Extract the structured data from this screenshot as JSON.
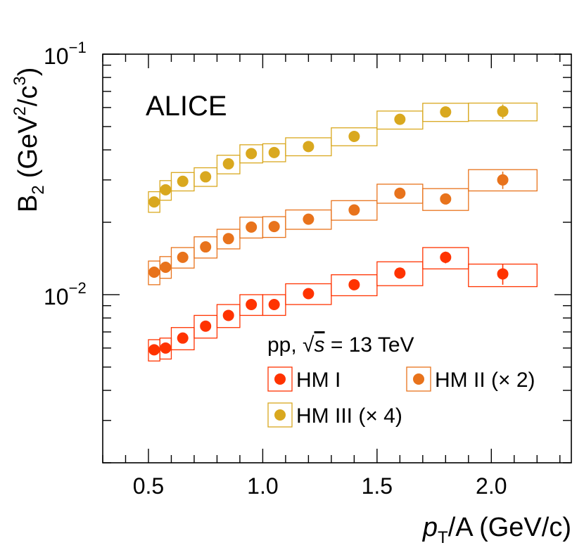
{
  "chart_data": {
    "type": "scatter",
    "xlabel_main": "p",
    "xlabel_sub": "T",
    "xlabel_rest": "/A (GeV/c)",
    "ylabel_main": "B",
    "ylabel_sub": "2",
    "ylabel_rest_a": "(GeV",
    "ylabel_rest_b": "/c",
    "ylabel_close": ")",
    "ylabel_sup_a": "2",
    "ylabel_sup_b": "3",
    "xlim": [
      0.3,
      2.35
    ],
    "ylim": [
      0.002,
      0.1
    ],
    "yscale": "log",
    "x_ticks": [
      "0.5",
      "1.0",
      "1.5",
      "2.0"
    ],
    "x_tick_values": [
      0.5,
      1.0,
      1.5,
      2.0
    ],
    "y_tick_labels": [
      {
        "value": 0.1,
        "base": "10",
        "exp": "−1"
      },
      {
        "value": 0.01,
        "base": "10",
        "exp": "−2"
      }
    ],
    "experiment_label": "ALICE",
    "legend": {
      "title_prefix": "pp, ",
      "title_sqrt": "√",
      "title_s": "s",
      "title_suffix": " = 13 TeV",
      "placement": "bottom-right"
    },
    "bin_edges": [
      [
        0.5,
        0.55
      ],
      [
        0.55,
        0.6
      ],
      [
        0.6,
        0.7
      ],
      [
        0.7,
        0.8
      ],
      [
        0.8,
        0.9
      ],
      [
        0.9,
        1.0
      ],
      [
        1.0,
        1.1
      ],
      [
        1.1,
        1.3
      ],
      [
        1.3,
        1.5
      ],
      [
        1.5,
        1.7
      ],
      [
        1.7,
        1.9
      ],
      [
        1.9,
        2.2
      ]
    ],
    "series": [
      {
        "name": "HM I",
        "color": "#ff3300",
        "x": [
          0.525,
          0.575,
          0.65,
          0.75,
          0.85,
          0.95,
          1.05,
          1.2,
          1.4,
          1.6,
          1.8,
          2.05
        ],
        "y": [
          0.0059,
          0.006,
          0.0066,
          0.0074,
          0.0082,
          0.0091,
          0.0091,
          0.0101,
          0.011,
          0.0123,
          0.0143,
          0.0122
        ],
        "sys_low": [
          0.0053,
          0.0054,
          0.0059,
          0.0066,
          0.0073,
          0.0082,
          0.0082,
          0.0091,
          0.0099,
          0.0109,
          0.0128,
          0.0108
        ],
        "sys_high": [
          0.0065,
          0.0066,
          0.0073,
          0.0082,
          0.0091,
          0.01,
          0.01,
          0.0111,
          0.0121,
          0.0137,
          0.0157,
          0.0134
        ],
        "stat_err": [
          0.0001,
          0.0001,
          0.0001,
          0.00012,
          0.00014,
          0.00016,
          0.00018,
          0.0002,
          0.00025,
          0.0004,
          0.0008,
          0.0012
        ]
      },
      {
        "name": "HM II (× 2)",
        "color": "#e8731c",
        "x": [
          0.525,
          0.575,
          0.65,
          0.75,
          0.85,
          0.95,
          1.05,
          1.2,
          1.4,
          1.6,
          1.8,
          2.05
        ],
        "y": [
          0.0124,
          0.013,
          0.0143,
          0.0158,
          0.0171,
          0.0191,
          0.0192,
          0.0206,
          0.0225,
          0.0264,
          0.025,
          0.03
        ],
        "sys_low": [
          0.011,
          0.0117,
          0.0129,
          0.0142,
          0.0155,
          0.0172,
          0.0173,
          0.0187,
          0.0204,
          0.024,
          0.0224,
          0.027
        ],
        "sys_high": [
          0.0138,
          0.0144,
          0.0157,
          0.0174,
          0.0187,
          0.021,
          0.0211,
          0.0225,
          0.0246,
          0.0288,
          0.0276,
          0.0331
        ],
        "stat_err": [
          0.0002,
          0.0002,
          0.0002,
          0.00025,
          0.0003,
          0.0003,
          0.00035,
          0.0004,
          0.0005,
          0.0008,
          0.0012,
          0.0025
        ]
      },
      {
        "name": "HM III (× 4)",
        "color": "#d9a81f",
        "x": [
          0.525,
          0.575,
          0.65,
          0.75,
          0.85,
          0.95,
          1.05,
          1.2,
          1.4,
          1.6,
          1.8,
          2.05
        ],
        "y": [
          0.0243,
          0.0273,
          0.0296,
          0.0309,
          0.035,
          0.0386,
          0.039,
          0.0413,
          0.0455,
          0.0536,
          0.0575,
          0.0578
        ],
        "sys_low": [
          0.022,
          0.0247,
          0.027,
          0.0282,
          0.0318,
          0.0353,
          0.0357,
          0.0378,
          0.0416,
          0.0488,
          0.0525,
          0.0528
        ],
        "sys_high": [
          0.0268,
          0.0298,
          0.0322,
          0.0337,
          0.038,
          0.042,
          0.0424,
          0.0449,
          0.0494,
          0.058,
          0.0625,
          0.0626
        ],
        "stat_err": [
          0.0003,
          0.0003,
          0.0003,
          0.0004,
          0.0005,
          0.0005,
          0.0005,
          0.0006,
          0.0008,
          0.0012,
          0.002,
          0.004
        ]
      }
    ]
  }
}
